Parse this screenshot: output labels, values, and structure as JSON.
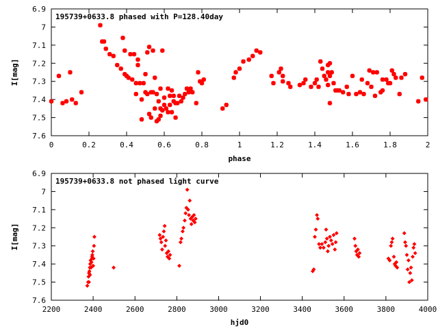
{
  "chart_data": [
    {
      "type": "scatter",
      "title": "195739+0633.8 phased with P=128.40day",
      "xlabel": "phase",
      "ylabel": "I[mag]",
      "xlim": [
        0,
        2
      ],
      "ylim": [
        7.6,
        6.9
      ],
      "y_inverted": true,
      "grid": false,
      "marker": "asterisk",
      "color": "#ff0000",
      "xticks": [
        "0",
        "0.2",
        "0.4",
        "0.6",
        "0.8",
        "1",
        "1.2",
        "1.4",
        "1.6",
        "1.8",
        "2"
      ],
      "yticks": [
        "6.9",
        "7",
        "7.1",
        "7.2",
        "7.3",
        "7.4",
        "7.5",
        "7.6"
      ],
      "points": [
        [
          0.0,
          7.41
        ],
        [
          0.04,
          7.27
        ],
        [
          0.06,
          7.42
        ],
        [
          0.08,
          7.41
        ],
        [
          0.1,
          7.25
        ],
        [
          0.11,
          7.4
        ],
        [
          0.13,
          7.42
        ],
        [
          0.16,
          7.36
        ],
        [
          0.26,
          6.99
        ],
        [
          0.27,
          7.08
        ],
        [
          0.28,
          7.08
        ],
        [
          0.29,
          7.12
        ],
        [
          0.31,
          7.15
        ],
        [
          0.33,
          7.16
        ],
        [
          0.35,
          7.21
        ],
        [
          0.37,
          7.23
        ],
        [
          0.38,
          7.06
        ],
        [
          0.39,
          7.13
        ],
        [
          0.39,
          7.26
        ],
        [
          0.4,
          7.27
        ],
        [
          0.41,
          7.28
        ],
        [
          0.42,
          7.15
        ],
        [
          0.43,
          7.29
        ],
        [
          0.44,
          7.15
        ],
        [
          0.45,
          7.31
        ],
        [
          0.45,
          7.37
        ],
        [
          0.46,
          7.18
        ],
        [
          0.46,
          7.21
        ],
        [
          0.47,
          7.31
        ],
        [
          0.48,
          7.4
        ],
        [
          0.48,
          7.51
        ],
        [
          0.49,
          7.31
        ],
        [
          0.5,
          7.26
        ],
        [
          0.5,
          7.36
        ],
        [
          0.51,
          7.14
        ],
        [
          0.51,
          7.37
        ],
        [
          0.52,
          7.48
        ],
        [
          0.52,
          7.11
        ],
        [
          0.53,
          7.36
        ],
        [
          0.53,
          7.5
        ],
        [
          0.54,
          7.13
        ],
        [
          0.54,
          7.36
        ],
        [
          0.55,
          7.28
        ],
        [
          0.55,
          7.45
        ],
        [
          0.56,
          7.37
        ],
        [
          0.56,
          7.52
        ],
        [
          0.57,
          7.41
        ],
        [
          0.57,
          7.51
        ],
        [
          0.58,
          7.34
        ],
        [
          0.58,
          7.45
        ],
        [
          0.58,
          7.49
        ],
        [
          0.59,
          7.46
        ],
        [
          0.59,
          7.13
        ],
        [
          0.6,
          7.43
        ],
        [
          0.6,
          7.39
        ],
        [
          0.61,
          7.45
        ],
        [
          0.62,
          7.34
        ],
        [
          0.62,
          7.47
        ],
        [
          0.63,
          7.43
        ],
        [
          0.63,
          7.38
        ],
        [
          0.64,
          7.35
        ],
        [
          0.64,
          7.47
        ],
        [
          0.65,
          7.41
        ],
        [
          0.65,
          7.38
        ],
        [
          0.66,
          7.42
        ],
        [
          0.66,
          7.5
        ],
        [
          0.67,
          7.42
        ],
        [
          0.68,
          7.38
        ],
        [
          0.69,
          7.41
        ],
        [
          0.7,
          7.39
        ],
        [
          0.71,
          7.37
        ],
        [
          0.72,
          7.34
        ],
        [
          0.73,
          7.36
        ],
        [
          0.74,
          7.34
        ],
        [
          0.75,
          7.36
        ],
        [
          0.77,
          7.42
        ],
        [
          0.78,
          7.25
        ],
        [
          0.79,
          7.3
        ],
        [
          0.8,
          7.31
        ],
        [
          0.81,
          7.29
        ],
        [
          0.91,
          7.45
        ],
        [
          0.93,
          7.43
        ],
        [
          0.97,
          7.28
        ],
        [
          0.98,
          7.25
        ],
        [
          1.0,
          7.23
        ],
        [
          1.02,
          7.19
        ],
        [
          1.05,
          7.18
        ],
        [
          1.07,
          7.16
        ],
        [
          1.09,
          7.13
        ],
        [
          1.11,
          7.14
        ],
        [
          1.17,
          7.27
        ],
        [
          1.18,
          7.31
        ],
        [
          1.21,
          7.25
        ],
        [
          1.22,
          7.23
        ],
        [
          1.23,
          7.27
        ],
        [
          1.23,
          7.3
        ],
        [
          1.26,
          7.31
        ],
        [
          1.27,
          7.33
        ],
        [
          1.32,
          7.32
        ],
        [
          1.34,
          7.31
        ],
        [
          1.35,
          7.29
        ],
        [
          1.38,
          7.33
        ],
        [
          1.4,
          7.31
        ],
        [
          1.41,
          7.29
        ],
        [
          1.42,
          7.33
        ],
        [
          1.43,
          7.19
        ],
        [
          1.44,
          7.23
        ],
        [
          1.45,
          7.27
        ],
        [
          1.46,
          7.29
        ],
        [
          1.47,
          7.21
        ],
        [
          1.47,
          7.25
        ],
        [
          1.48,
          7.2
        ],
        [
          1.48,
          7.27
        ],
        [
          1.49,
          7.25
        ],
        [
          1.5,
          7.31
        ],
        [
          1.51,
          7.35
        ],
        [
          1.52,
          7.35
        ],
        [
          1.53,
          7.35
        ],
        [
          1.55,
          7.36
        ],
        [
          1.57,
          7.33
        ],
        [
          1.58,
          7.37
        ],
        [
          1.6,
          7.27
        ],
        [
          1.62,
          7.37
        ],
        [
          1.64,
          7.36
        ],
        [
          1.65,
          7.29
        ],
        [
          1.66,
          7.37
        ],
        [
          1.68,
          7.31
        ],
        [
          1.69,
          7.24
        ],
        [
          1.7,
          7.33
        ],
        [
          1.71,
          7.25
        ],
        [
          1.72,
          7.38
        ],
        [
          1.73,
          7.25
        ],
        [
          1.75,
          7.36
        ],
        [
          1.76,
          7.29
        ],
        [
          1.76,
          7.35
        ],
        [
          1.78,
          7.29
        ],
        [
          1.79,
          7.31
        ],
        [
          1.8,
          7.31
        ],
        [
          1.81,
          7.24
        ],
        [
          1.82,
          7.26
        ],
        [
          1.83,
          7.28
        ],
        [
          1.85,
          7.37
        ],
        [
          1.86,
          7.28
        ],
        [
          1.88,
          7.26
        ],
        [
          1.95,
          7.41
        ],
        [
          1.97,
          7.28
        ],
        [
          1.99,
          7.4
        ],
        [
          1.48,
          7.42
        ],
        [
          1.47,
          7.32
        ]
      ]
    },
    {
      "type": "scatter",
      "title": "195739+0633.8 not phased light curve",
      "xlabel": "hjd0",
      "ylabel": "I[mag]",
      "xlim": [
        2200,
        4000
      ],
      "ylim": [
        7.6,
        6.9
      ],
      "y_inverted": true,
      "grid": false,
      "marker": "diamond",
      "color": "#ff0000",
      "xticks": [
        "2200",
        "2400",
        "2600",
        "2800",
        "3000",
        "3200",
        "3400",
        "3600",
        "3800",
        "4000"
      ],
      "yticks": [
        "6.9",
        "7",
        "7.1",
        "7.2",
        "7.3",
        "7.4",
        "7.5",
        "7.6"
      ],
      "points": [
        [
          2372,
          7.52
        ],
        [
          2376,
          7.5
        ],
        [
          2378,
          7.47
        ],
        [
          2380,
          7.45
        ],
        [
          2382,
          7.44
        ],
        [
          2384,
          7.42
        ],
        [
          2386,
          7.4
        ],
        [
          2388,
          7.38
        ],
        [
          2390,
          7.42
        ],
        [
          2392,
          7.39
        ],
        [
          2394,
          7.37
        ],
        [
          2396,
          7.35
        ],
        [
          2398,
          7.33
        ],
        [
          2400,
          7.41
        ],
        [
          2402,
          7.37
        ],
        [
          2404,
          7.3
        ],
        [
          2406,
          7.25
        ],
        [
          2380,
          7.5
        ],
        [
          2385,
          7.46
        ],
        [
          2395,
          7.36
        ],
        [
          2498,
          7.42
        ],
        [
          2718,
          7.24
        ],
        [
          2722,
          7.26
        ],
        [
          2726,
          7.28
        ],
        [
          2730,
          7.32
        ],
        [
          2734,
          7.25
        ],
        [
          2738,
          7.22
        ],
        [
          2742,
          7.19
        ],
        [
          2744,
          7.3
        ],
        [
          2748,
          7.27
        ],
        [
          2752,
          7.34
        ],
        [
          2756,
          7.36
        ],
        [
          2760,
          7.33
        ],
        [
          2764,
          7.37
        ],
        [
          2768,
          7.35
        ],
        [
          2812,
          7.41
        ],
        [
          2818,
          7.28
        ],
        [
          2822,
          7.26
        ],
        [
          2828,
          7.22
        ],
        [
          2832,
          7.2
        ],
        [
          2838,
          7.16
        ],
        [
          2842,
          7.12
        ],
        [
          2846,
          7.09
        ],
        [
          2850,
          6.99
        ],
        [
          2854,
          7.1
        ],
        [
          2858,
          7.13
        ],
        [
          2862,
          7.05
        ],
        [
          2866,
          7.15
        ],
        [
          2870,
          7.18
        ],
        [
          2874,
          7.14
        ],
        [
          2878,
          7.16
        ],
        [
          2882,
          7.13
        ],
        [
          2886,
          7.17
        ],
        [
          2890,
          7.15
        ],
        [
          3450,
          7.44
        ],
        [
          3455,
          7.43
        ],
        [
          3460,
          7.25
        ],
        [
          3465,
          7.21
        ],
        [
          3470,
          7.13
        ],
        [
          3474,
          7.15
        ],
        [
          3480,
          7.29
        ],
        [
          3486,
          7.31
        ],
        [
          3494,
          7.29
        ],
        [
          3502,
          7.31
        ],
        [
          3510,
          7.28
        ],
        [
          3514,
          7.21
        ],
        [
          3518,
          7.26
        ],
        [
          3522,
          7.33
        ],
        [
          3526,
          7.3
        ],
        [
          3532,
          7.25
        ],
        [
          3538,
          7.27
        ],
        [
          3544,
          7.29
        ],
        [
          3550,
          7.24
        ],
        [
          3556,
          7.32
        ],
        [
          3560,
          7.28
        ],
        [
          3564,
          7.23
        ],
        [
          3650,
          7.26
        ],
        [
          3654,
          7.3
        ],
        [
          3658,
          7.33
        ],
        [
          3662,
          7.35
        ],
        [
          3666,
          7.32
        ],
        [
          3670,
          7.36
        ],
        [
          3674,
          7.34
        ],
        [
          3812,
          7.37
        ],
        [
          3818,
          7.38
        ],
        [
          3824,
          7.3
        ],
        [
          3828,
          7.28
        ],
        [
          3832,
          7.26
        ],
        [
          3838,
          7.36
        ],
        [
          3842,
          7.4
        ],
        [
          3846,
          7.41
        ],
        [
          3850,
          7.39
        ],
        [
          3854,
          7.42
        ],
        [
          3888,
          7.23
        ],
        [
          3892,
          7.28
        ],
        [
          3896,
          7.3
        ],
        [
          3900,
          7.35
        ],
        [
          3904,
          7.43
        ],
        [
          3908,
          7.38
        ],
        [
          3912,
          7.5
        ],
        [
          3916,
          7.45
        ],
        [
          3920,
          7.42
        ],
        [
          3924,
          7.49
        ],
        [
          3928,
          7.36
        ],
        [
          3932,
          7.31
        ],
        [
          3936,
          7.29
        ],
        [
          3940,
          7.34
        ]
      ]
    }
  ]
}
